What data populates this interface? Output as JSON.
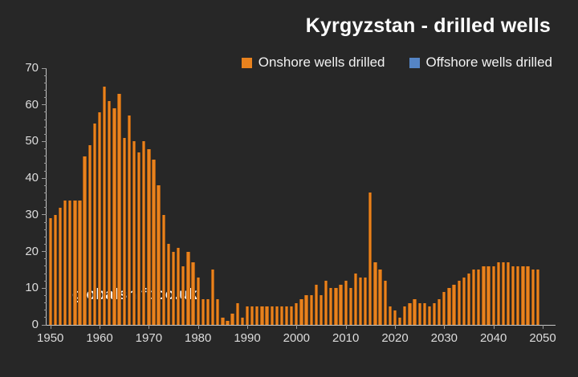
{
  "title": "Kyrgyzstan - drilled wells",
  "watermark": "globalshift.co.uk",
  "colors": {
    "background": "#272727",
    "onshore_bar": "#e8821e",
    "offshore_swatch": "#5585c5",
    "axis": "#c6c6c6",
    "tick_label": "#dcdcdc",
    "title_text": "#ffffff"
  },
  "legend": [
    {
      "label": "Onshore wells drilled",
      "color": "#e8821e"
    },
    {
      "label": "Offshore wells drilled",
      "color": "#5585c5"
    }
  ],
  "chart_data": {
    "type": "bar",
    "title": "Kyrgyzstan - drilled wells",
    "xlabel": "",
    "ylabel": "",
    "ylim": [
      0,
      70
    ],
    "y_ticks": [
      0,
      10,
      20,
      30,
      40,
      50,
      60,
      70
    ],
    "y_minor_step": 2,
    "x_ticks": [
      1950,
      1960,
      1970,
      1980,
      1990,
      2000,
      2010,
      2020,
      2030,
      2040,
      2050
    ],
    "grid": false,
    "legend_position": "top",
    "x": [
      1950,
      1951,
      1952,
      1953,
      1954,
      1955,
      1956,
      1957,
      1958,
      1959,
      1960,
      1961,
      1962,
      1963,
      1964,
      1965,
      1966,
      1967,
      1968,
      1969,
      1970,
      1971,
      1972,
      1973,
      1974,
      1975,
      1976,
      1977,
      1978,
      1979,
      1980,
      1981,
      1982,
      1983,
      1984,
      1985,
      1986,
      1987,
      1988,
      1989,
      1990,
      1991,
      1992,
      1993,
      1994,
      1995,
      1996,
      1997,
      1998,
      1999,
      2000,
      2001,
      2002,
      2003,
      2004,
      2005,
      2006,
      2007,
      2008,
      2009,
      2010,
      2011,
      2012,
      2013,
      2014,
      2015,
      2016,
      2017,
      2018,
      2019,
      2020,
      2021,
      2022,
      2023,
      2024,
      2025,
      2026,
      2027,
      2028,
      2029,
      2030,
      2031,
      2032,
      2033,
      2034,
      2035,
      2036,
      2037,
      2038,
      2039,
      2040,
      2041,
      2042,
      2043,
      2044,
      2045,
      2046,
      2047,
      2048,
      2049
    ],
    "series": [
      {
        "name": "Onshore wells drilled",
        "color": "#e8821e",
        "values": [
          29,
          30,
          32,
          34,
          34,
          34,
          34,
          46,
          49,
          55,
          58,
          65,
          61,
          59,
          63,
          51,
          57,
          50,
          47,
          50,
          48,
          45,
          38,
          30,
          22,
          20,
          21,
          16,
          20,
          17,
          13,
          7,
          7,
          15,
          7,
          2,
          1,
          3,
          6,
          2,
          5,
          5,
          5,
          5,
          5,
          5,
          5,
          5,
          5,
          5,
          6,
          7,
          8,
          8,
          11,
          8,
          12,
          10,
          10,
          11,
          12,
          10,
          14,
          13,
          13,
          36,
          17,
          15,
          12,
          5,
          4,
          2,
          5,
          6,
          7,
          6,
          6,
          5,
          6,
          7,
          9,
          10,
          11,
          12,
          13,
          14,
          15,
          15,
          16,
          16,
          16,
          17,
          17,
          17,
          16,
          16,
          16,
          16,
          15,
          15
        ]
      },
      {
        "name": "Offshore wells drilled",
        "color": "#5585c5",
        "values": [
          0,
          0,
          0,
          0,
          0,
          0,
          0,
          0,
          0,
          0,
          0,
          0,
          0,
          0,
          0,
          0,
          0,
          0,
          0,
          0,
          0,
          0,
          0,
          0,
          0,
          0,
          0,
          0,
          0,
          0,
          0,
          0,
          0,
          0,
          0,
          0,
          0,
          0,
          0,
          0,
          0,
          0,
          0,
          0,
          0,
          0,
          0,
          0,
          0,
          0,
          0,
          0,
          0,
          0,
          0,
          0,
          0,
          0,
          0,
          0,
          0,
          0,
          0,
          0,
          0,
          0,
          0,
          0,
          0,
          0,
          0,
          0,
          0,
          0,
          0,
          0,
          0,
          0,
          0,
          0,
          0,
          0,
          0,
          0,
          0,
          0,
          0,
          0,
          0,
          0,
          0,
          0,
          0,
          0,
          0,
          0,
          0,
          0,
          0,
          0
        ]
      }
    ]
  }
}
